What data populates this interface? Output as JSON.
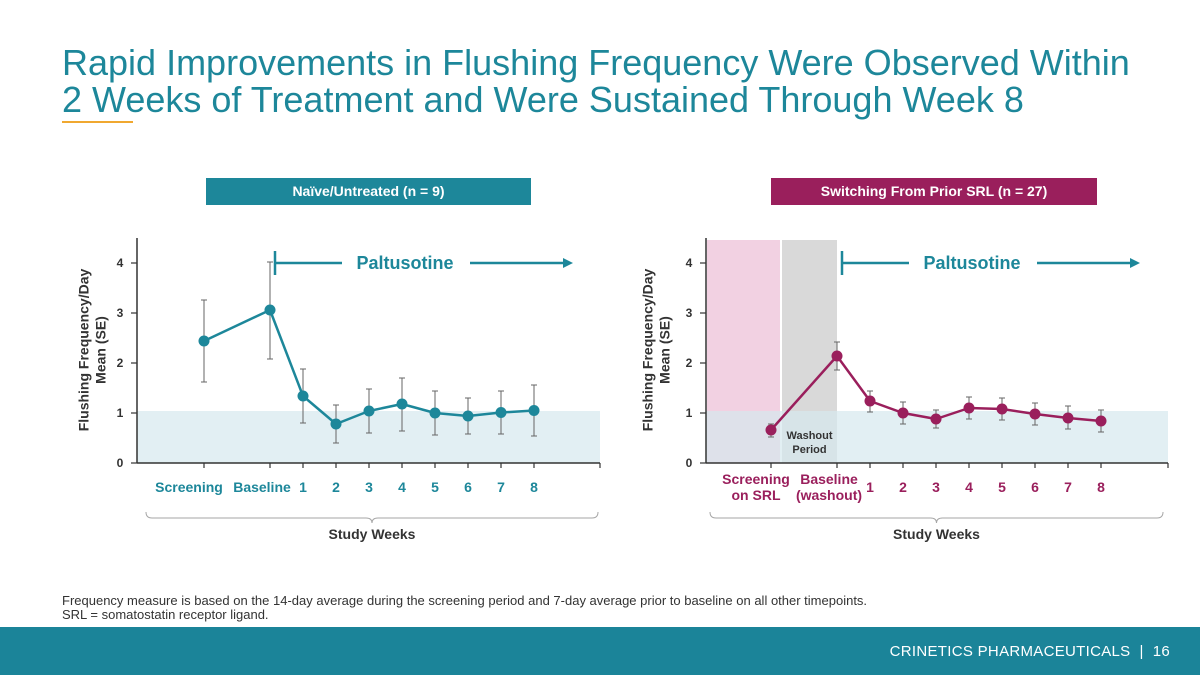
{
  "title": "Rapid Improvements in Flushing Frequency Were Observed Within\n2 Weeks of Treatment and Were Sustained Through Week 8",
  "colors": {
    "teal": "#1d879a",
    "magenta": "#9a1f5c",
    "accent_rule": "#f0a830",
    "text": "#333333",
    "footer_bg": "#1b8499"
  },
  "chart_data": [
    {
      "type": "line",
      "title": "Naïve/Untreated (n = 9)",
      "title_color": "#1d879a",
      "xlabel": "Study Weeks",
      "ylabel": "Flushing Frequency/Day\nMean (SE)",
      "ylim": [
        0,
        4.5
      ],
      "yticks": [
        0,
        1,
        2,
        3,
        4
      ],
      "grid": false,
      "categories": [
        "Screening",
        "Baseline",
        "1",
        "2",
        "3",
        "4",
        "5",
        "6",
        "7",
        "8"
      ],
      "category_color": "#1d879a",
      "series": [
        {
          "values": [
            2.44,
            3.06,
            1.34,
            0.78,
            1.04,
            1.18,
            1.0,
            0.94,
            1.01,
            1.05
          ],
          "error_lower": [
            1.62,
            2.08,
            0.8,
            0.4,
            0.6,
            0.64,
            0.56,
            0.58,
            0.58,
            0.54
          ],
          "error_upper": [
            3.26,
            4.02,
            1.88,
            1.16,
            1.48,
            1.7,
            1.44,
            1.3,
            1.44,
            1.56
          ],
          "color": "#1d879a"
        }
      ],
      "shaded_band": {
        "from": 0,
        "to": 1.04,
        "color": "#d6e8ee"
      },
      "annotation": {
        "text": "Paltusotine",
        "start_index": 1,
        "color": "#1d879a"
      }
    },
    {
      "type": "line",
      "title": "Switching From Prior SRL (n = 27)",
      "title_color": "#9a1f5c",
      "xlabel": "Study Weeks",
      "ylabel": "Flushing Frequency/Day\nMean (SE)",
      "ylim": [
        0,
        4.5
      ],
      "yticks": [
        0,
        1,
        2,
        3,
        4
      ],
      "grid": false,
      "categories": [
        "Screening\non SRL",
        "Baseline\n(washout)",
        "1",
        "2",
        "3",
        "4",
        "5",
        "6",
        "7",
        "8"
      ],
      "category_color": "#9a1f5c",
      "series": [
        {
          "values": [
            0.66,
            2.14,
            1.24,
            1.0,
            0.88,
            1.1,
            1.08,
            0.98,
            0.9,
            0.84
          ],
          "error_lower": [
            0.52,
            1.86,
            1.02,
            0.78,
            0.7,
            0.88,
            0.86,
            0.76,
            0.68,
            0.62
          ],
          "error_upper": [
            0.78,
            2.42,
            1.44,
            1.22,
            1.06,
            1.32,
            1.3,
            1.2,
            1.14,
            1.06
          ],
          "color": "#9a1f5c"
        }
      ],
      "shaded_band": {
        "from": 0,
        "to": 1.04,
        "color": "#d6e8ee"
      },
      "regions": [
        {
          "color": "#f2d1e2"
        },
        {
          "label": "Washout\nPeriod",
          "color": "#d9d9d9"
        }
      ],
      "annotation": {
        "text": "Paltusotine",
        "start_index": 1,
        "color": "#1d879a"
      }
    }
  ],
  "footnotes": [
    "Frequency measure is based on the 14-day average during the screening period and 7-day average prior to baseline on all other timepoints.",
    "SRL = somatostatin receptor ligand."
  ],
  "footer": {
    "company": "CRINETICS PHARMACEUTICALS",
    "separator": "|",
    "page": "16"
  }
}
